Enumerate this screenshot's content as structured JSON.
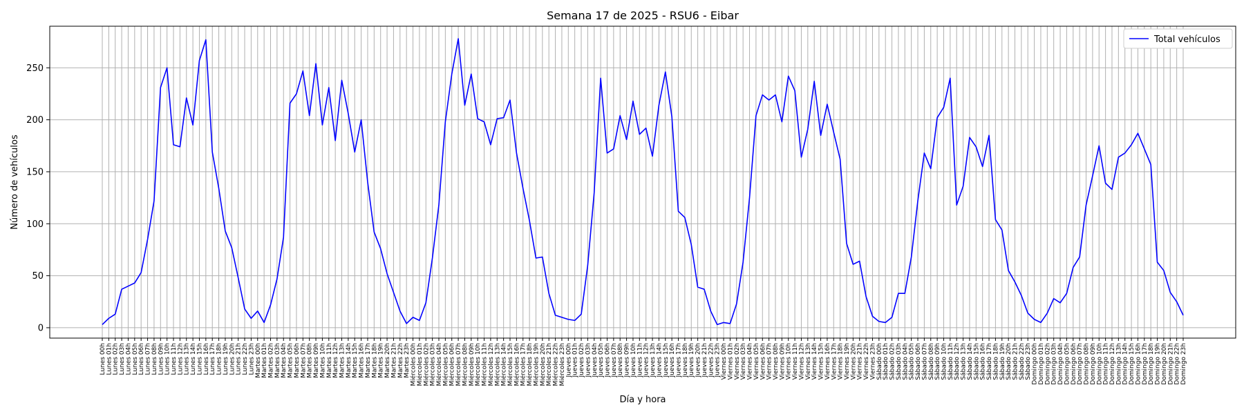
{
  "chart_data": {
    "type": "line",
    "title": "Semana 17 de 2025 - RSU6 - Eibar",
    "xlabel": "Día y hora",
    "ylabel": "Número de vehículos",
    "ylim": [
      -10,
      290
    ],
    "yticks": [
      0,
      50,
      100,
      150,
      200,
      250
    ],
    "grid": true,
    "legend_position": "top-right",
    "days": [
      "Lunes",
      "Martes",
      "Miércoles",
      "Jueves",
      "Viernes",
      "Sábado",
      "Domingo"
    ],
    "hours": [
      "00h",
      "01h",
      "02h",
      "03h",
      "04h",
      "05h",
      "06h",
      "07h",
      "08h",
      "09h",
      "10h",
      "11h",
      "12h",
      "13h",
      "14h",
      "15h",
      "16h",
      "17h",
      "18h",
      "19h",
      "20h",
      "21h",
      "22h",
      "23h"
    ],
    "series": [
      {
        "name": "Total vehículos",
        "color": "#0000ff",
        "values": [
          3,
          9,
          13,
          37,
          40,
          43,
          53,
          85,
          122,
          231,
          250,
          176,
          174,
          221,
          195,
          257,
          277,
          169,
          134,
          93,
          77,
          48,
          18,
          9,
          16,
          5,
          22,
          47,
          87,
          216,
          225,
          247,
          204,
          254,
          195,
          231,
          180,
          238,
          206,
          169,
          200,
          140,
          92,
          76,
          52,
          34,
          16,
          4,
          10,
          7,
          24,
          67,
          118,
          198,
          244,
          278,
          214,
          244,
          201,
          198,
          176,
          201,
          202,
          219,
          168,
          134,
          103,
          67,
          68,
          33,
          12,
          10,
          8,
          7,
          13,
          60,
          130,
          240,
          168,
          172,
          204,
          181,
          218,
          186,
          192,
          165,
          214,
          246,
          203,
          112,
          106,
          80,
          39,
          37,
          16,
          3,
          5,
          4,
          23,
          63,
          125,
          204,
          224,
          219,
          224,
          198,
          242,
          228,
          164,
          191,
          237,
          185,
          215,
          188,
          162,
          81,
          61,
          64,
          30,
          11,
          6,
          5,
          10,
          33,
          33,
          68,
          122,
          168,
          153,
          202,
          212,
          240,
          118,
          136,
          183,
          174,
          155,
          185,
          104,
          94,
          55,
          44,
          31,
          14,
          8,
          5,
          14,
          28,
          24,
          33,
          58,
          68,
          118,
          146,
          175,
          139,
          133,
          164,
          168,
          176,
          187,
          172,
          157,
          63,
          55,
          34,
          25,
          12
        ]
      }
    ]
  }
}
